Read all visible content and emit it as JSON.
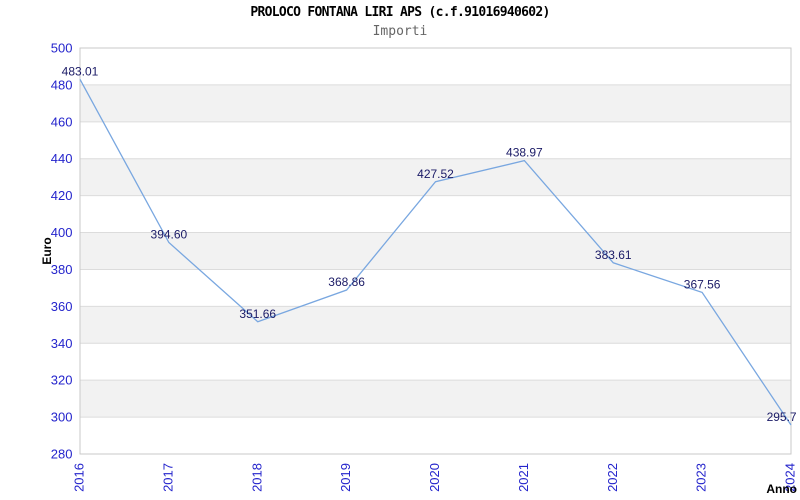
{
  "chart_data": {
    "type": "line",
    "title": "PROLOCO FONTANA LIRI APS (c.f.91016940602)",
    "subtitle": "Importi",
    "x": [
      "2016",
      "2017",
      "2018",
      "2019",
      "2020",
      "2021",
      "2022",
      "2023",
      "2024"
    ],
    "series": [
      {
        "name": "Importi",
        "values": [
          483.01,
          394.6,
          351.66,
          368.86,
          427.52,
          438.97,
          383.61,
          367.56,
          295.7
        ],
        "labels": [
          "483.01",
          "394.60",
          "351.66",
          "368.86",
          "427.52",
          "438.97",
          "383.61",
          "367.56",
          "295.7"
        ]
      }
    ],
    "xlabel": "Anno",
    "ylabel": "Euro",
    "ylim": [
      280,
      500
    ],
    "ytick_step": 20,
    "yticks": [
      280,
      300,
      320,
      340,
      360,
      380,
      400,
      420,
      440,
      460,
      480,
      500
    ],
    "grid": "horizontal",
    "alternating_row_bands": true,
    "legend": "none",
    "markers": "none",
    "x_tick_rotation": 90,
    "colors": {
      "line": "#79a7e0",
      "tick_label": "#2424cc",
      "point_label": "#1a1a66",
      "band": "#f2f2f2",
      "gridline": "#dcdcdc",
      "plot_border": "#c9c9c9",
      "subtitle_text": "#666666",
      "axis_title_text": "#000000",
      "background": "#ffffff"
    }
  }
}
